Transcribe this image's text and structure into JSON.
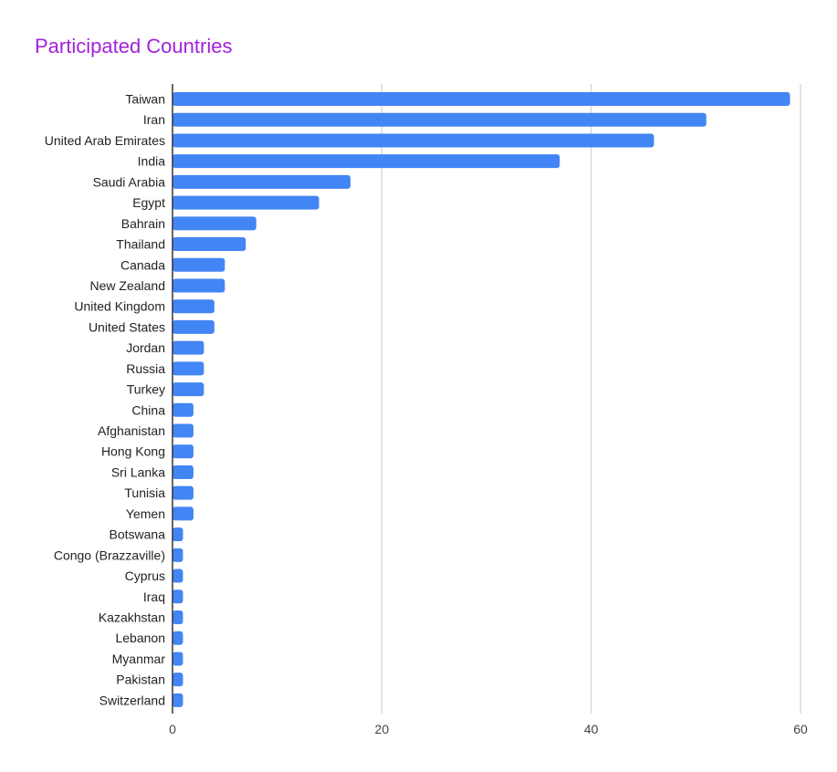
{
  "title": "Participated Countries",
  "colors": {
    "bar": "#4285f4",
    "title": "#a222d9",
    "grid": "#d9d9d9",
    "axis": "#333333"
  },
  "chart_data": {
    "type": "bar",
    "orientation": "horizontal",
    "title": "Participated Countries",
    "xlabel": "",
    "ylabel": "",
    "xlim": [
      0,
      60
    ],
    "grid": true,
    "legend": "none",
    "xticks": [
      0,
      20,
      40,
      60
    ],
    "categories": [
      "Taiwan",
      "Iran",
      "United Arab Emirates",
      "India",
      "Saudi Arabia",
      "Egypt",
      "Bahrain",
      "Thailand",
      "Canada",
      "New Zealand",
      "United Kingdom",
      "United States",
      "Jordan",
      "Russia",
      "Turkey",
      "China",
      "Afghanistan",
      "Hong Kong",
      "Sri Lanka",
      "Tunisia",
      "Yemen",
      "Botswana",
      "Congo (Brazzaville)",
      "Cyprus",
      "Iraq",
      "Kazakhstan",
      "Lebanon",
      "Myanmar",
      "Pakistan",
      "Switzerland"
    ],
    "values": [
      59,
      51,
      46,
      37,
      17,
      14,
      8,
      7,
      5,
      5,
      4,
      4,
      3,
      3,
      3,
      2,
      2,
      2,
      2,
      2,
      2,
      1,
      1,
      1,
      1,
      1,
      1,
      1,
      1,
      1
    ]
  }
}
